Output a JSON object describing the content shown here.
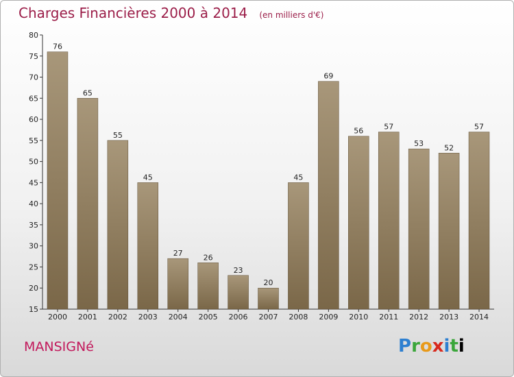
{
  "chart_data": {
    "type": "bar",
    "title": "Charges Financières 2000 à 2014",
    "subtitle": "(en milliers d'€)",
    "xlabel": "",
    "ylabel": "",
    "categories": [
      "2000",
      "2001",
      "2002",
      "2003",
      "2004",
      "2005",
      "2006",
      "2007",
      "2008",
      "2009",
      "2010",
      "2011",
      "2012",
      "2013",
      "2014"
    ],
    "values": [
      76,
      65,
      55,
      45,
      27,
      26,
      23,
      20,
      45,
      69,
      56,
      57,
      53,
      52,
      57
    ],
    "ylim": [
      15,
      80
    ],
    "yticks": [
      15,
      20,
      25,
      30,
      35,
      40,
      45,
      50,
      55,
      60,
      65,
      70,
      75,
      80
    ],
    "grid": false,
    "bar_color_top": "#a8977a",
    "bar_color_bottom": "#7a6748"
  },
  "footer": {
    "commune": "MANSIGNé",
    "logo_letters": [
      "P",
      "r",
      "o",
      "x",
      "i",
      "t",
      "i"
    ]
  },
  "colors": {
    "title": "#9b1d48",
    "commune": "#c2185b"
  }
}
